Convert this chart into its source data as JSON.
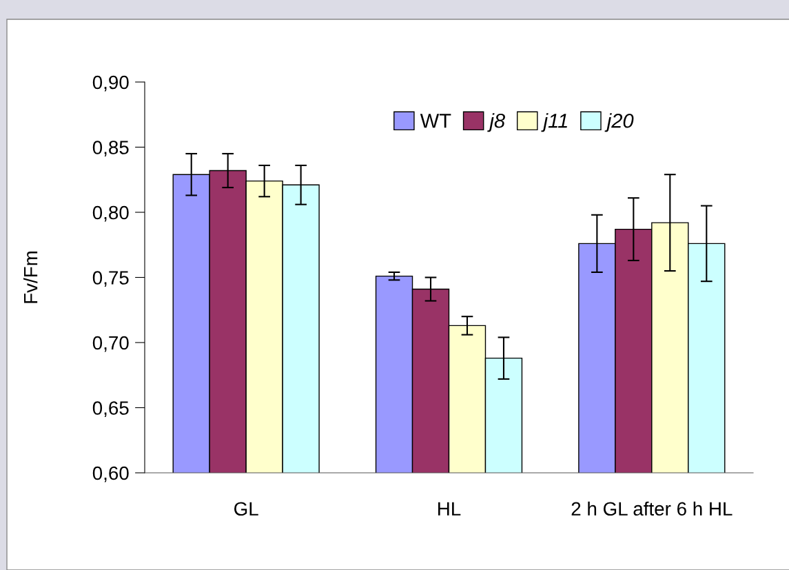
{
  "chart_data": {
    "type": "bar",
    "ylabel": "Fv/Fm",
    "categories": [
      "GL",
      "HL",
      "2 h GL after 6 h HL"
    ],
    "series": [
      {
        "name": "WT",
        "color": "#9999ff",
        "values": [
          0.829,
          0.751,
          0.776
        ],
        "errors": [
          0.016,
          0.003,
          0.022
        ]
      },
      {
        "name": "j8",
        "color": "#993366",
        "values": [
          0.832,
          0.741,
          0.787
        ],
        "errors": [
          0.013,
          0.009,
          0.024
        ]
      },
      {
        "name": "j11",
        "color": "#ffffcc",
        "values": [
          0.824,
          0.713,
          0.792
        ],
        "errors": [
          0.012,
          0.007,
          0.037
        ]
      },
      {
        "name": "j20",
        "color": "#ccffff",
        "values": [
          0.821,
          0.688,
          0.776
        ],
        "errors": [
          0.015,
          0.016,
          0.029
        ]
      }
    ],
    "ylim": [
      0.6,
      0.9
    ],
    "yticks": [
      {
        "value": 0.6,
        "label": "0,60"
      },
      {
        "value": 0.65,
        "label": "0,65"
      },
      {
        "value": 0.7,
        "label": "0,70"
      },
      {
        "value": 0.75,
        "label": "0,75"
      },
      {
        "value": 0.8,
        "label": "0,80"
      },
      {
        "value": 0.85,
        "label": "0,85"
      },
      {
        "value": 0.9,
        "label": "0,90"
      }
    ],
    "legend": "top right",
    "grid": false
  }
}
